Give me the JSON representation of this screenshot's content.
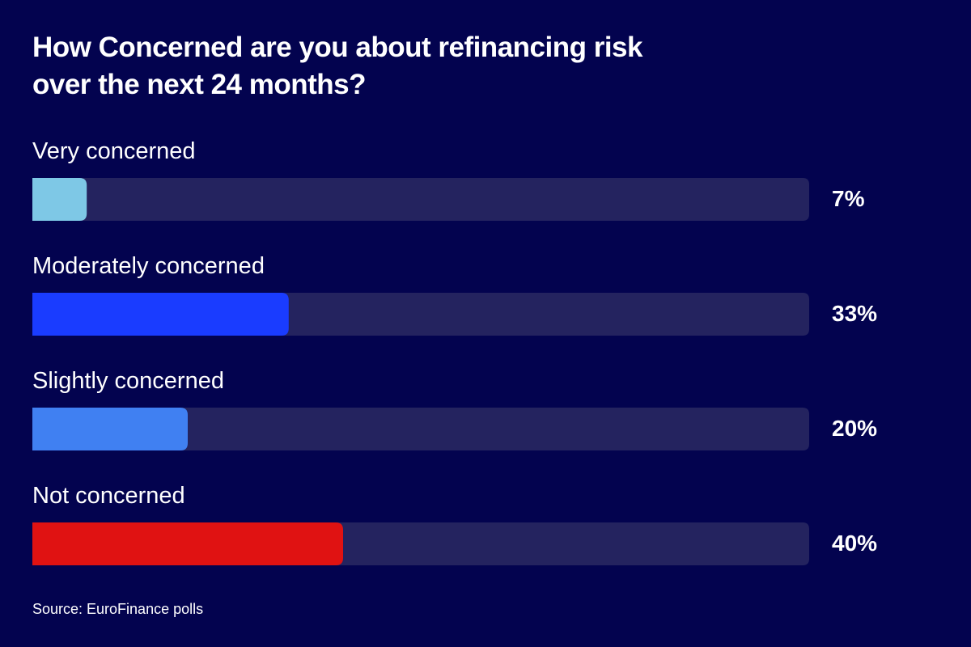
{
  "chart_data": {
    "type": "hbar",
    "title": "How Concerned are you about refinancing risk over the next 24 months?",
    "categories": [
      "Very concerned",
      "Moderately concerned",
      "Slightly concerned",
      "Not concerned"
    ],
    "values": [
      7,
      33,
      20,
      40
    ],
    "value_labels": [
      "7%",
      "33%",
      "20%",
      "40%"
    ],
    "colors": [
      "#7ec8e6",
      "#1a3cff",
      "#4080f2",
      "#e01212"
    ],
    "track_color": "#24235f",
    "xlim": [
      0,
      100
    ],
    "source": "Source: EuroFinance polls"
  }
}
